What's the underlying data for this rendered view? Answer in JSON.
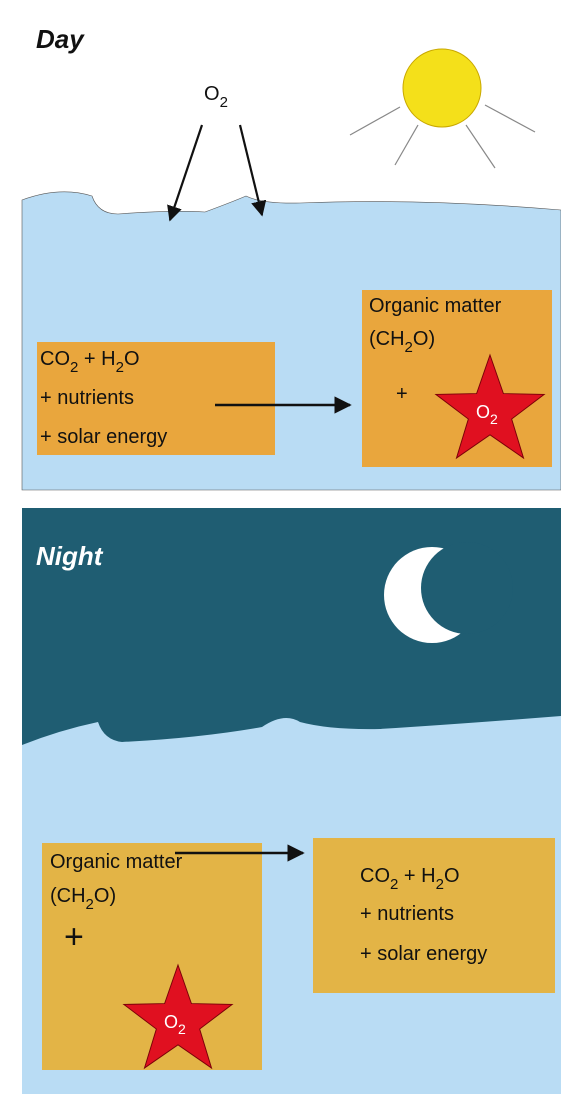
{
  "day": {
    "title": "Day",
    "o2": [
      "O",
      "2"
    ],
    "reactants": {
      "line1": [
        "CO",
        "2",
        " + H",
        "2",
        "O"
      ],
      "line2": "+ nutrients",
      "line3": "+ solar energy"
    },
    "products": {
      "line1": "Organic matter",
      "line2": [
        "(CH",
        "2",
        "O)"
      ],
      "plus": "+",
      "star": [
        "O",
        "2"
      ]
    }
  },
  "night": {
    "title": "Night",
    "reactants": {
      "line1": "Organic matter",
      "line2": [
        "(CH",
        "2",
        "O)"
      ],
      "plus": "+",
      "star": [
        "O",
        "2"
      ]
    },
    "products": {
      "line1": [
        "CO",
        "2",
        " + H",
        "2",
        "O"
      ],
      "line2": "+ nutrients",
      "line3": "+ solar energy"
    }
  }
}
